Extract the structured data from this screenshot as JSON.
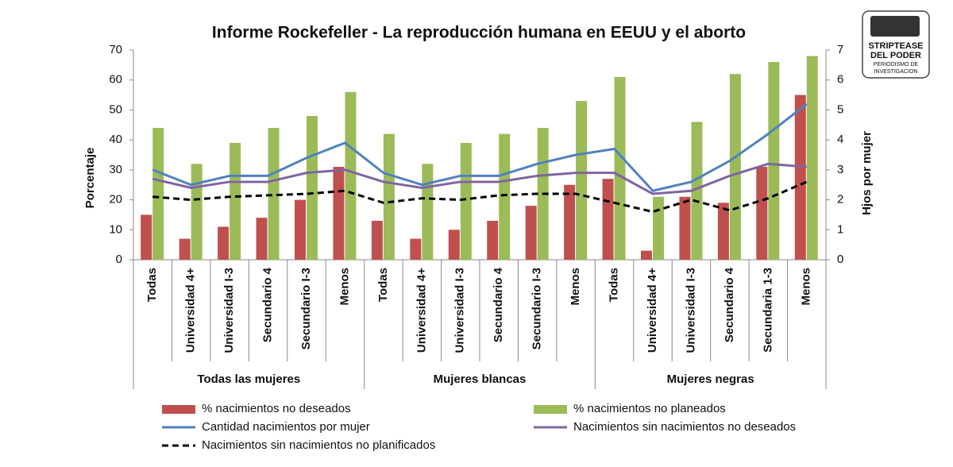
{
  "chart_data": {
    "type": "bar",
    "title": "Informe Rockefeller - La reproducción humana en EEUU y el aborto",
    "y_label": "Porcentaje",
    "y2_label": "Hjos por mujer",
    "categories": [
      "Todas",
      "Universidad 4+",
      "Universidad I-3",
      "Secundario 4",
      "Secundario I-3",
      "Menos",
      "Todas",
      "Universidad 4+",
      "Universidad I-3",
      "Secundario 4",
      "Secundario I-3",
      "Menos",
      "Todas",
      "Universidad 4+",
      "Universidad I-3",
      "Secundario 4",
      "Secundaria 1-3",
      "Menos"
    ],
    "groups": [
      "Todas las mujeres",
      "Mujeres blancas",
      "Mujeres negras"
    ],
    "ylim": [
      0,
      70
    ],
    "yticks": [
      0,
      10,
      20,
      30,
      40,
      50,
      60,
      70
    ],
    "y2lim": [
      0,
      7
    ],
    "y2ticks": [
      0,
      1,
      2,
      3,
      4,
      5,
      6,
      7
    ],
    "grid": false,
    "series": [
      {
        "name": "% nacimientos no deseados",
        "type": "bar",
        "color": "#c0504d",
        "values": [
          15,
          7,
          11,
          14,
          20,
          31,
          13,
          7,
          10,
          13,
          18,
          25,
          27,
          3,
          21,
          19,
          31,
          55
        ]
      },
      {
        "name": "%  nacimientos no planeados",
        "type": "bar",
        "color": "#9bbb59",
        "values": [
          44,
          32,
          39,
          44,
          48,
          56,
          42,
          32,
          39,
          42,
          44,
          53,
          61,
          21,
          46,
          62,
          66,
          68
        ]
      },
      {
        "name": "Cantidad nacimientos por mujer",
        "type": "line",
        "axis": "y2",
        "color": "#4f81bd",
        "dash": false,
        "values": [
          3.0,
          2.5,
          2.8,
          2.8,
          3.4,
          3.9,
          2.9,
          2.5,
          2.8,
          2.8,
          3.2,
          3.5,
          3.7,
          2.3,
          2.6,
          3.3,
          4.2,
          5.2
        ]
      },
      {
        "name": "Nacimientos sin nacimientos no deseados",
        "type": "line",
        "axis": "y2",
        "color": "#8064a2",
        "dash": false,
        "values": [
          2.7,
          2.4,
          2.6,
          2.6,
          2.9,
          3.0,
          2.6,
          2.4,
          2.6,
          2.6,
          2.8,
          2.9,
          2.9,
          2.2,
          2.3,
          2.8,
          3.2,
          3.1
        ]
      },
      {
        "name": "Nacimientos sin nacimientos no planificados",
        "type": "line",
        "axis": "y2",
        "color": "#000000",
        "dash": true,
        "values": [
          2.1,
          2.0,
          2.1,
          2.15,
          2.2,
          2.3,
          1.9,
          2.05,
          2.0,
          2.15,
          2.2,
          2.2,
          1.9,
          1.6,
          2.0,
          1.65,
          2.05,
          2.6
        ]
      }
    ]
  },
  "logo": {
    "title_1": "STRIPTEASE",
    "title_2": "DEL PODER",
    "subtitle_1": "PERIODISMO DE",
    "subtitle_2": "INVESTIGACION"
  }
}
